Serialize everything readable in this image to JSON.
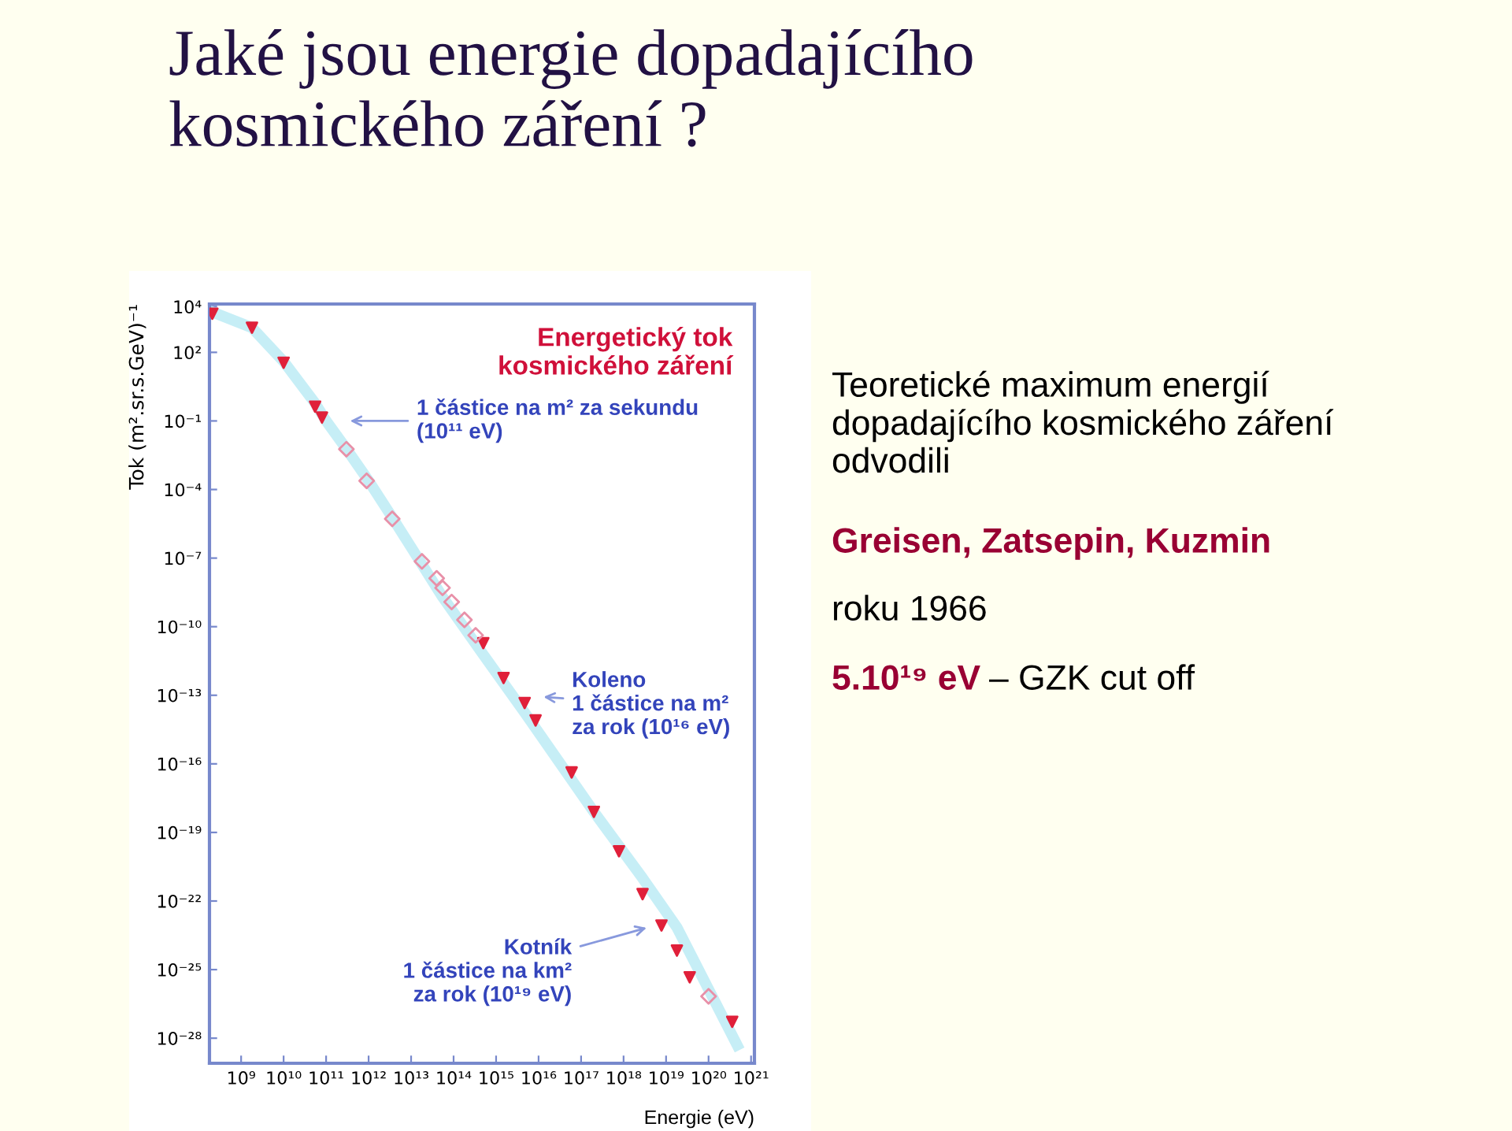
{
  "chart_data": {
    "type": "scatter",
    "title": "Jaké jsou energie dopadajícího\nkosmického záření ?",
    "subtitle": "Energetický tok\nkosmického záření",
    "xlabel": "Energie (eV)",
    "ylabel": "Tok (m².sr.s.GeV)⁻¹",
    "log": "xy",
    "series": [
      {
        "type": "line",
        "color": "#b8eaf4",
        "x": [
          200000000.0,
          1800000000.0,
          10000000000.0,
          55000000000.0,
          100000000000.0,
          300000000000.0,
          1000000000000.0,
          3600000000000.0,
          55000000000000.0,
          500000000000000.0,
          5000000000000000.0,
          2e+17,
          2.8e+18,
          1.8e+19,
          4.7e+20
        ],
        "values": [
          6000.0,
          1200.0,
          40,
          0.6,
          0.1,
          0.006,
          0.00024,
          6e-06,
          2e-09,
          6e-12,
          1.5e-14,
          8e-19,
          1e-21,
          7e-24,
          5e-29
        ]
      },
      {
        "color": "#e0203a",
        "marker": "triangle",
        "x": [
          210000000.0,
          1800000000.0,
          10000000000.0,
          55000000000.0,
          80000000000.0,
          500000000000000.0,
          1500000000000000.0,
          4700000000000000.0,
          8500000000000000.0,
          6e+16,
          2e+17,
          7.8e+17,
          2.8e+18,
          7.8e+18,
          1.8e+19,
          3.6e+19,
          3.6e+20
        ],
        "values": [
          4900.0,
          1200.0,
          35,
          0.42,
          0.14,
          1.9e-11,
          5.7e-13,
          4.6e-14,
          7.9e-15,
          4.2e-17,
          7.9e-19,
          1.5e-20,
          2e-22,
          8.5e-24,
          6.8e-25,
          4.6e-26,
          5.2e-28
        ]
      },
      {
        "color": "#e890a8",
        "marker": "diamond",
        "x": [
          300000000000.0,
          900000000000.0,
          3600000000000.0,
          18000000000000.0,
          40000000000000.0,
          55000000000000.0,
          90000000000000.0,
          180000000000000.0,
          330000000000000.0,
          1e+20
        ],
        "values": [
          0.0058,
          0.00024,
          5.2e-06,
          7.2e-08,
          1.3e-08,
          5e-09,
          1.2e-09,
          2e-10,
          4.2e-11,
          6.8e-27
        ]
      }
    ],
    "xlim": [
      180000000.0,
      1.2e+21
    ],
    "ylim": [
      8e-30,
      13000.0
    ],
    "xticks": [
      {
        "value": 1000000000.0,
        "label": "10⁹"
      },
      {
        "value": 10000000000.0,
        "label": "10¹⁰"
      },
      {
        "value": 100000000000.0,
        "label": "10¹¹"
      },
      {
        "value": 1000000000000.0,
        "label": "10¹²"
      },
      {
        "value": 10000000000000.0,
        "label": "10¹³"
      },
      {
        "value": 100000000000000.0,
        "label": "10¹⁴"
      },
      {
        "value": 1000000000000000.0,
        "label": "10¹⁵"
      },
      {
        "value": 1e+16,
        "label": "10¹⁶"
      },
      {
        "value": 1e+17,
        "label": "10¹⁷"
      },
      {
        "value": 1e+18,
        "label": "10¹⁸"
      },
      {
        "value": 1e+19,
        "label": "10¹⁹"
      },
      {
        "value": 1e+20,
        "label": "10²⁰"
      },
      {
        "value": 1e+21,
        "label": "10²¹"
      }
    ],
    "yticks": [
      {
        "value": 10000.0,
        "label": "10⁴"
      },
      {
        "value": 100.0,
        "label": "10²"
      },
      {
        "value": 0.1,
        "label": "10⁻¹"
      },
      {
        "value": 0.0001,
        "label": "10⁻⁴"
      },
      {
        "value": 1e-07,
        "label": "10⁻⁷"
      },
      {
        "value": 1e-10,
        "label": "10⁻¹⁰"
      },
      {
        "value": 1e-13,
        "label": "10⁻¹³"
      },
      {
        "value": 1e-16,
        "label": "10⁻¹⁶"
      },
      {
        "value": 1e-19,
        "label": "10⁻¹⁹"
      },
      {
        "value": 1e-22,
        "label": "10⁻²²"
      },
      {
        "value": 1e-25,
        "label": "10⁻²⁵"
      },
      {
        "value": 1e-28,
        "label": "10⁻²⁸"
      }
    ],
    "annotations": [
      "1 částice na m² za sekundu\n(10¹¹ eV)",
      "Koleno\n1 částice na m²\nza rok (10¹⁶ eV)",
      "Kotník\n1 částice na km²\nza rok (10¹⁹ eV)",
      "Teoretické maximum energií\ndopadajícího kosmického záření\nodvodili",
      "Greisen, Zatsepin, Kuzmin",
      "roku 1966",
      "5.10¹⁹ eV",
      "– GZK cut off"
    ]
  }
}
